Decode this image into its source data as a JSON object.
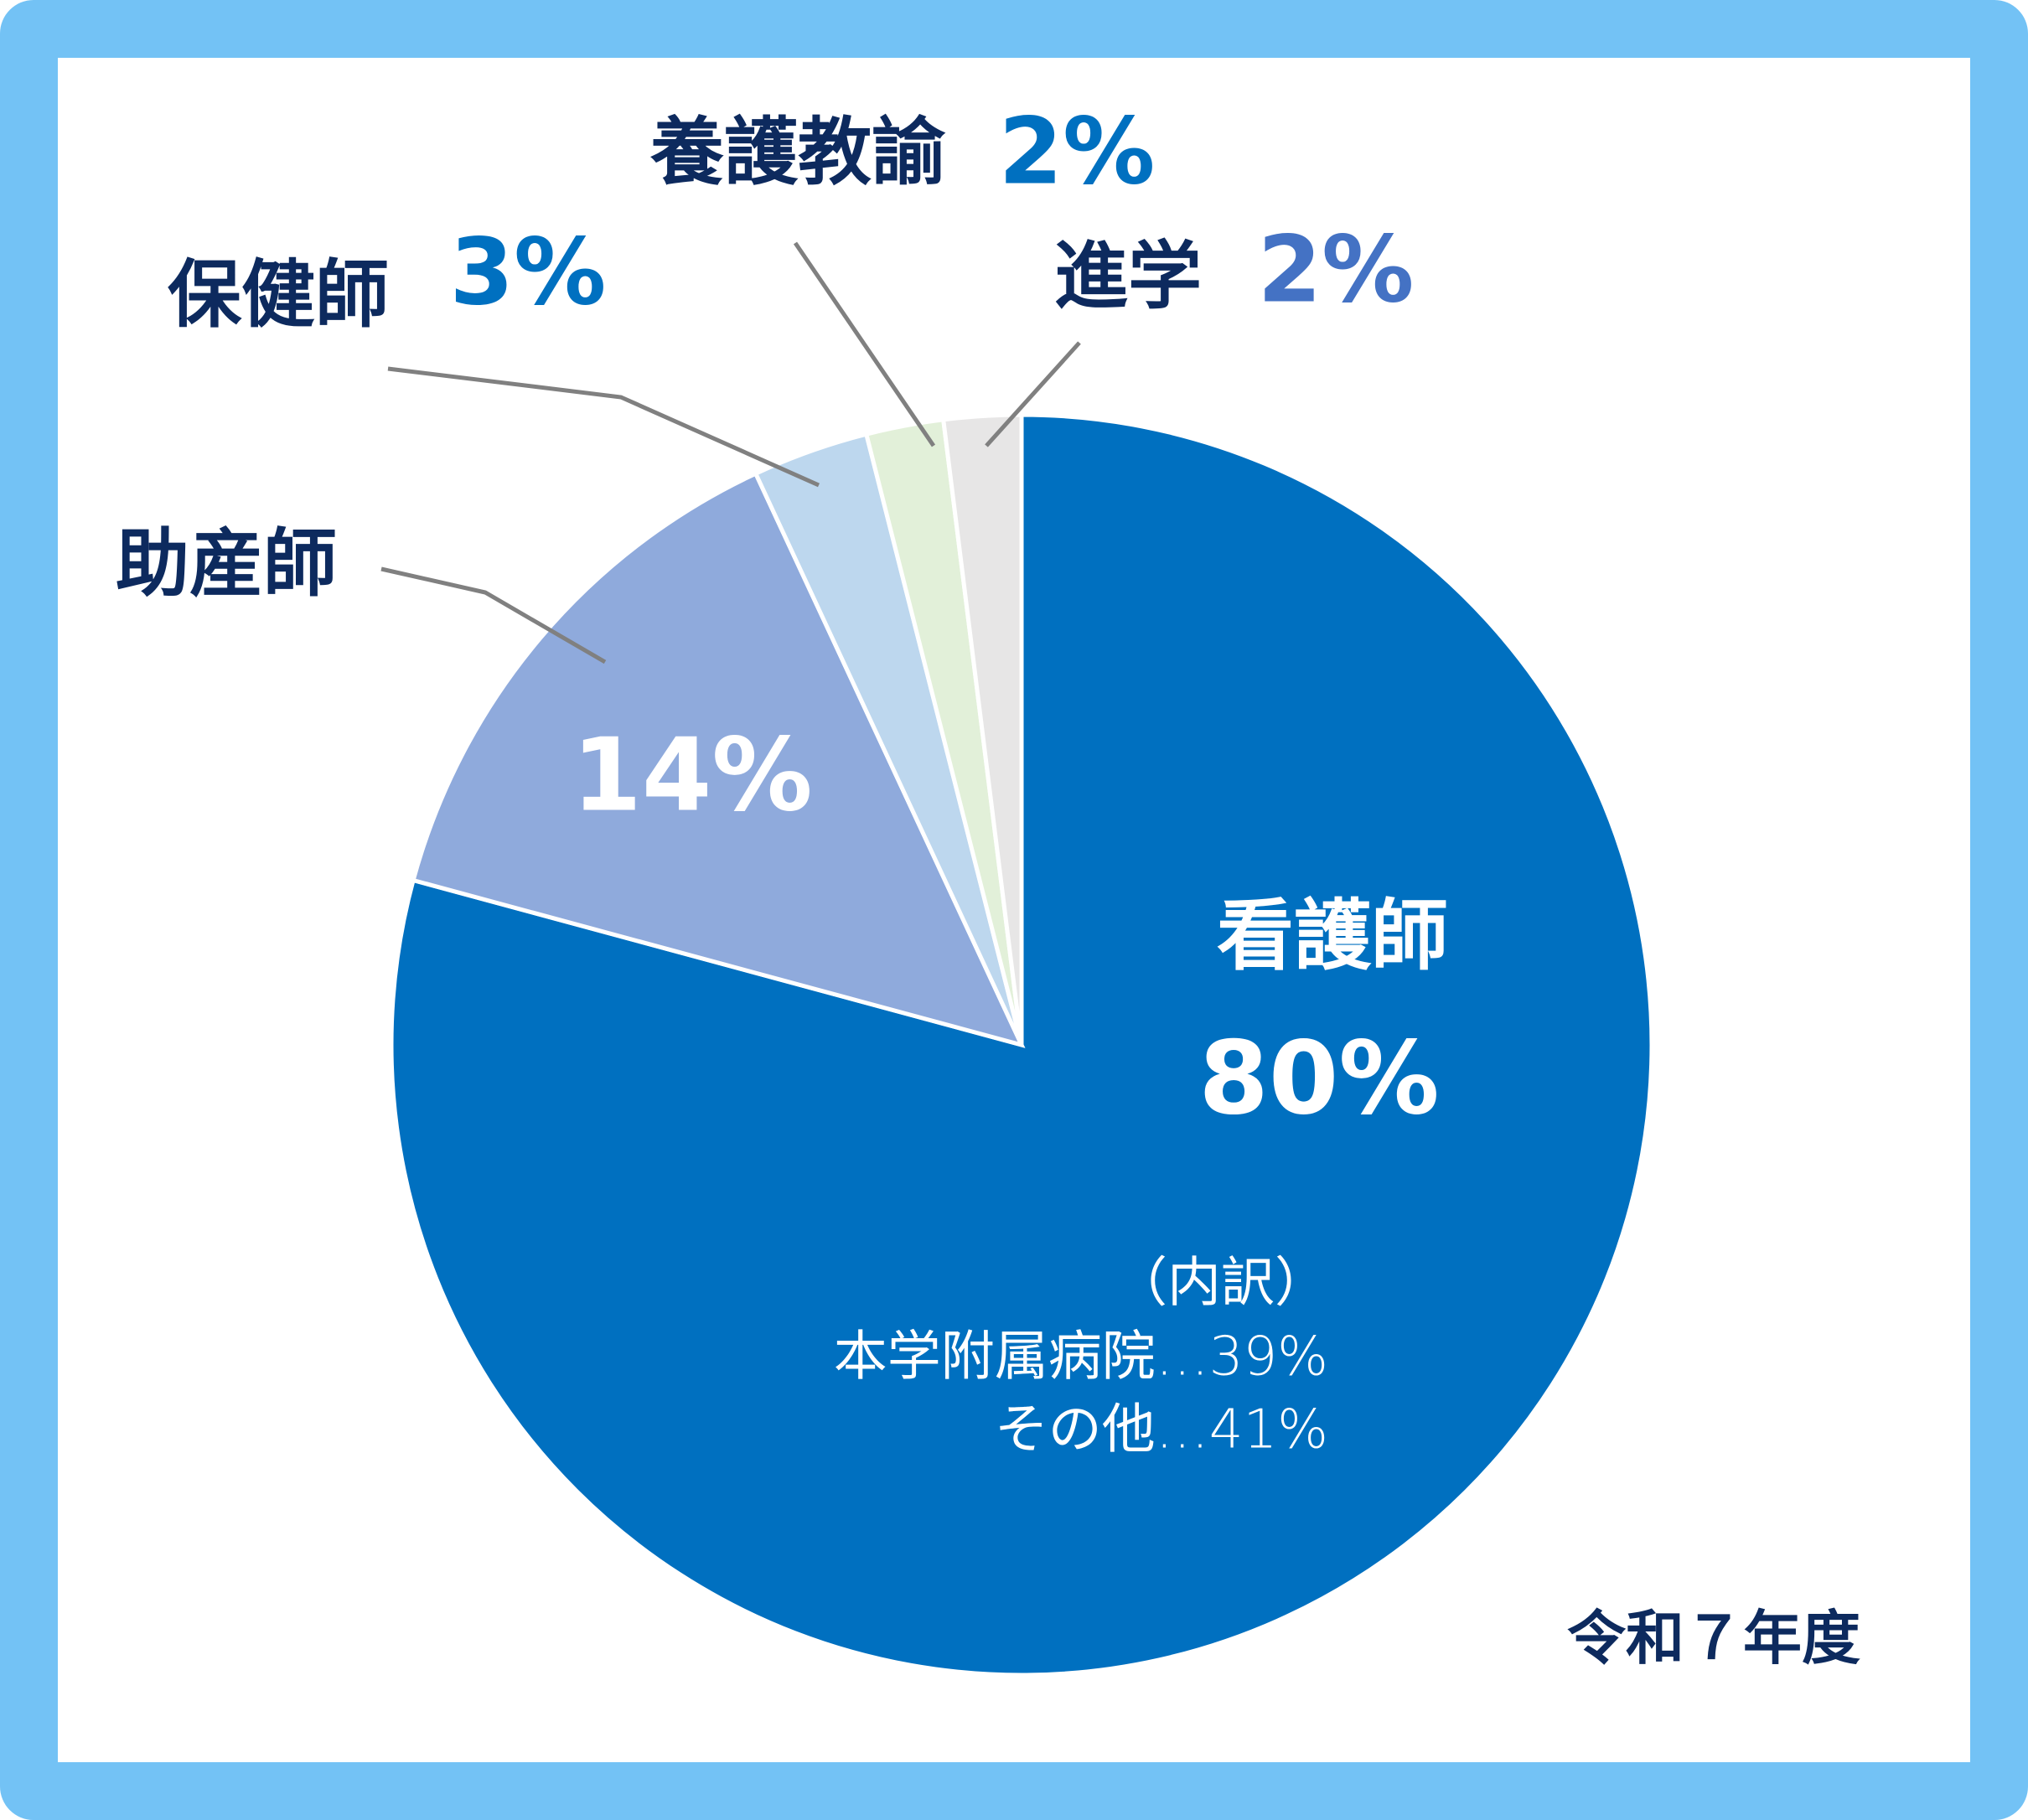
{
  "chart_data": {
    "type": "pie",
    "categories": [
      "看護師",
      "助産師",
      "保健師",
      "養護教諭",
      "進学"
    ],
    "values": [
      80,
      14,
      3,
      2,
      2
    ],
    "value_labels": [
      "80%",
      "14%",
      "3%",
      "2%",
      "2%"
    ],
    "colors": [
      "#0070c0",
      "#8faadc",
      "#bdd7ee",
      "#e2f0d9",
      "#e7e6e6"
    ],
    "label_colors": [
      "#ffffff",
      "#ffffff",
      "#0070c0",
      "#0070c0",
      "#4472c4"
    ],
    "annotations": [
      "（内訳）",
      "本学附属病院…39%",
      "その他…41%"
    ],
    "footnote": "令和７年度"
  }
}
